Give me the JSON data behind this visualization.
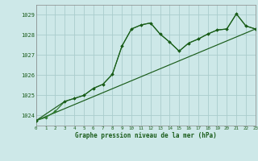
{
  "title": "Graphe pression niveau de la mer (hPa)",
  "background_color": "#cde8e8",
  "grid_color": "#aacccc",
  "line_dark": "#1a5c1a",
  "line_mid": "#2d7a2d",
  "xlim": [
    0,
    23
  ],
  "ylim": [
    1023.5,
    1029.5
  ],
  "yticks": [
    1024,
    1025,
    1026,
    1027,
    1028,
    1029
  ],
  "xticks": [
    0,
    1,
    2,
    3,
    4,
    5,
    6,
    7,
    8,
    9,
    10,
    11,
    12,
    13,
    14,
    15,
    16,
    17,
    18,
    19,
    20,
    21,
    22,
    23
  ],
  "series_main": {
    "x": [
      0,
      1,
      2,
      3,
      4,
      5,
      6,
      7,
      8,
      9,
      10,
      11,
      12,
      13,
      14,
      15,
      16,
      17,
      18,
      19,
      20,
      21,
      22,
      23
    ],
    "y": [
      1023.75,
      1023.9,
      1024.2,
      1024.7,
      1024.85,
      1025.0,
      1025.35,
      1025.55,
      1026.05,
      1027.45,
      1028.3,
      1028.5,
      1028.6,
      1028.05,
      1027.65,
      1027.2,
      1027.6,
      1027.8,
      1028.05,
      1028.25,
      1028.3,
      1029.05,
      1028.45,
      1028.3
    ]
  },
  "series_alt": {
    "x": [
      0,
      3,
      4,
      5,
      6,
      7,
      8,
      9,
      10,
      11,
      12,
      13,
      14,
      15,
      16,
      17,
      18,
      19,
      20,
      21,
      22,
      23
    ],
    "y": [
      1023.75,
      1024.7,
      1024.85,
      1025.0,
      1025.35,
      1025.55,
      1026.05,
      1027.45,
      1028.3,
      1028.5,
      1028.6,
      1028.05,
      1027.65,
      1027.2,
      1027.6,
      1027.8,
      1028.05,
      1028.25,
      1028.3,
      1029.05,
      1028.45,
      1028.3
    ]
  },
  "series_linear": {
    "x": [
      0,
      23
    ],
    "y": [
      1023.75,
      1028.3
    ]
  }
}
